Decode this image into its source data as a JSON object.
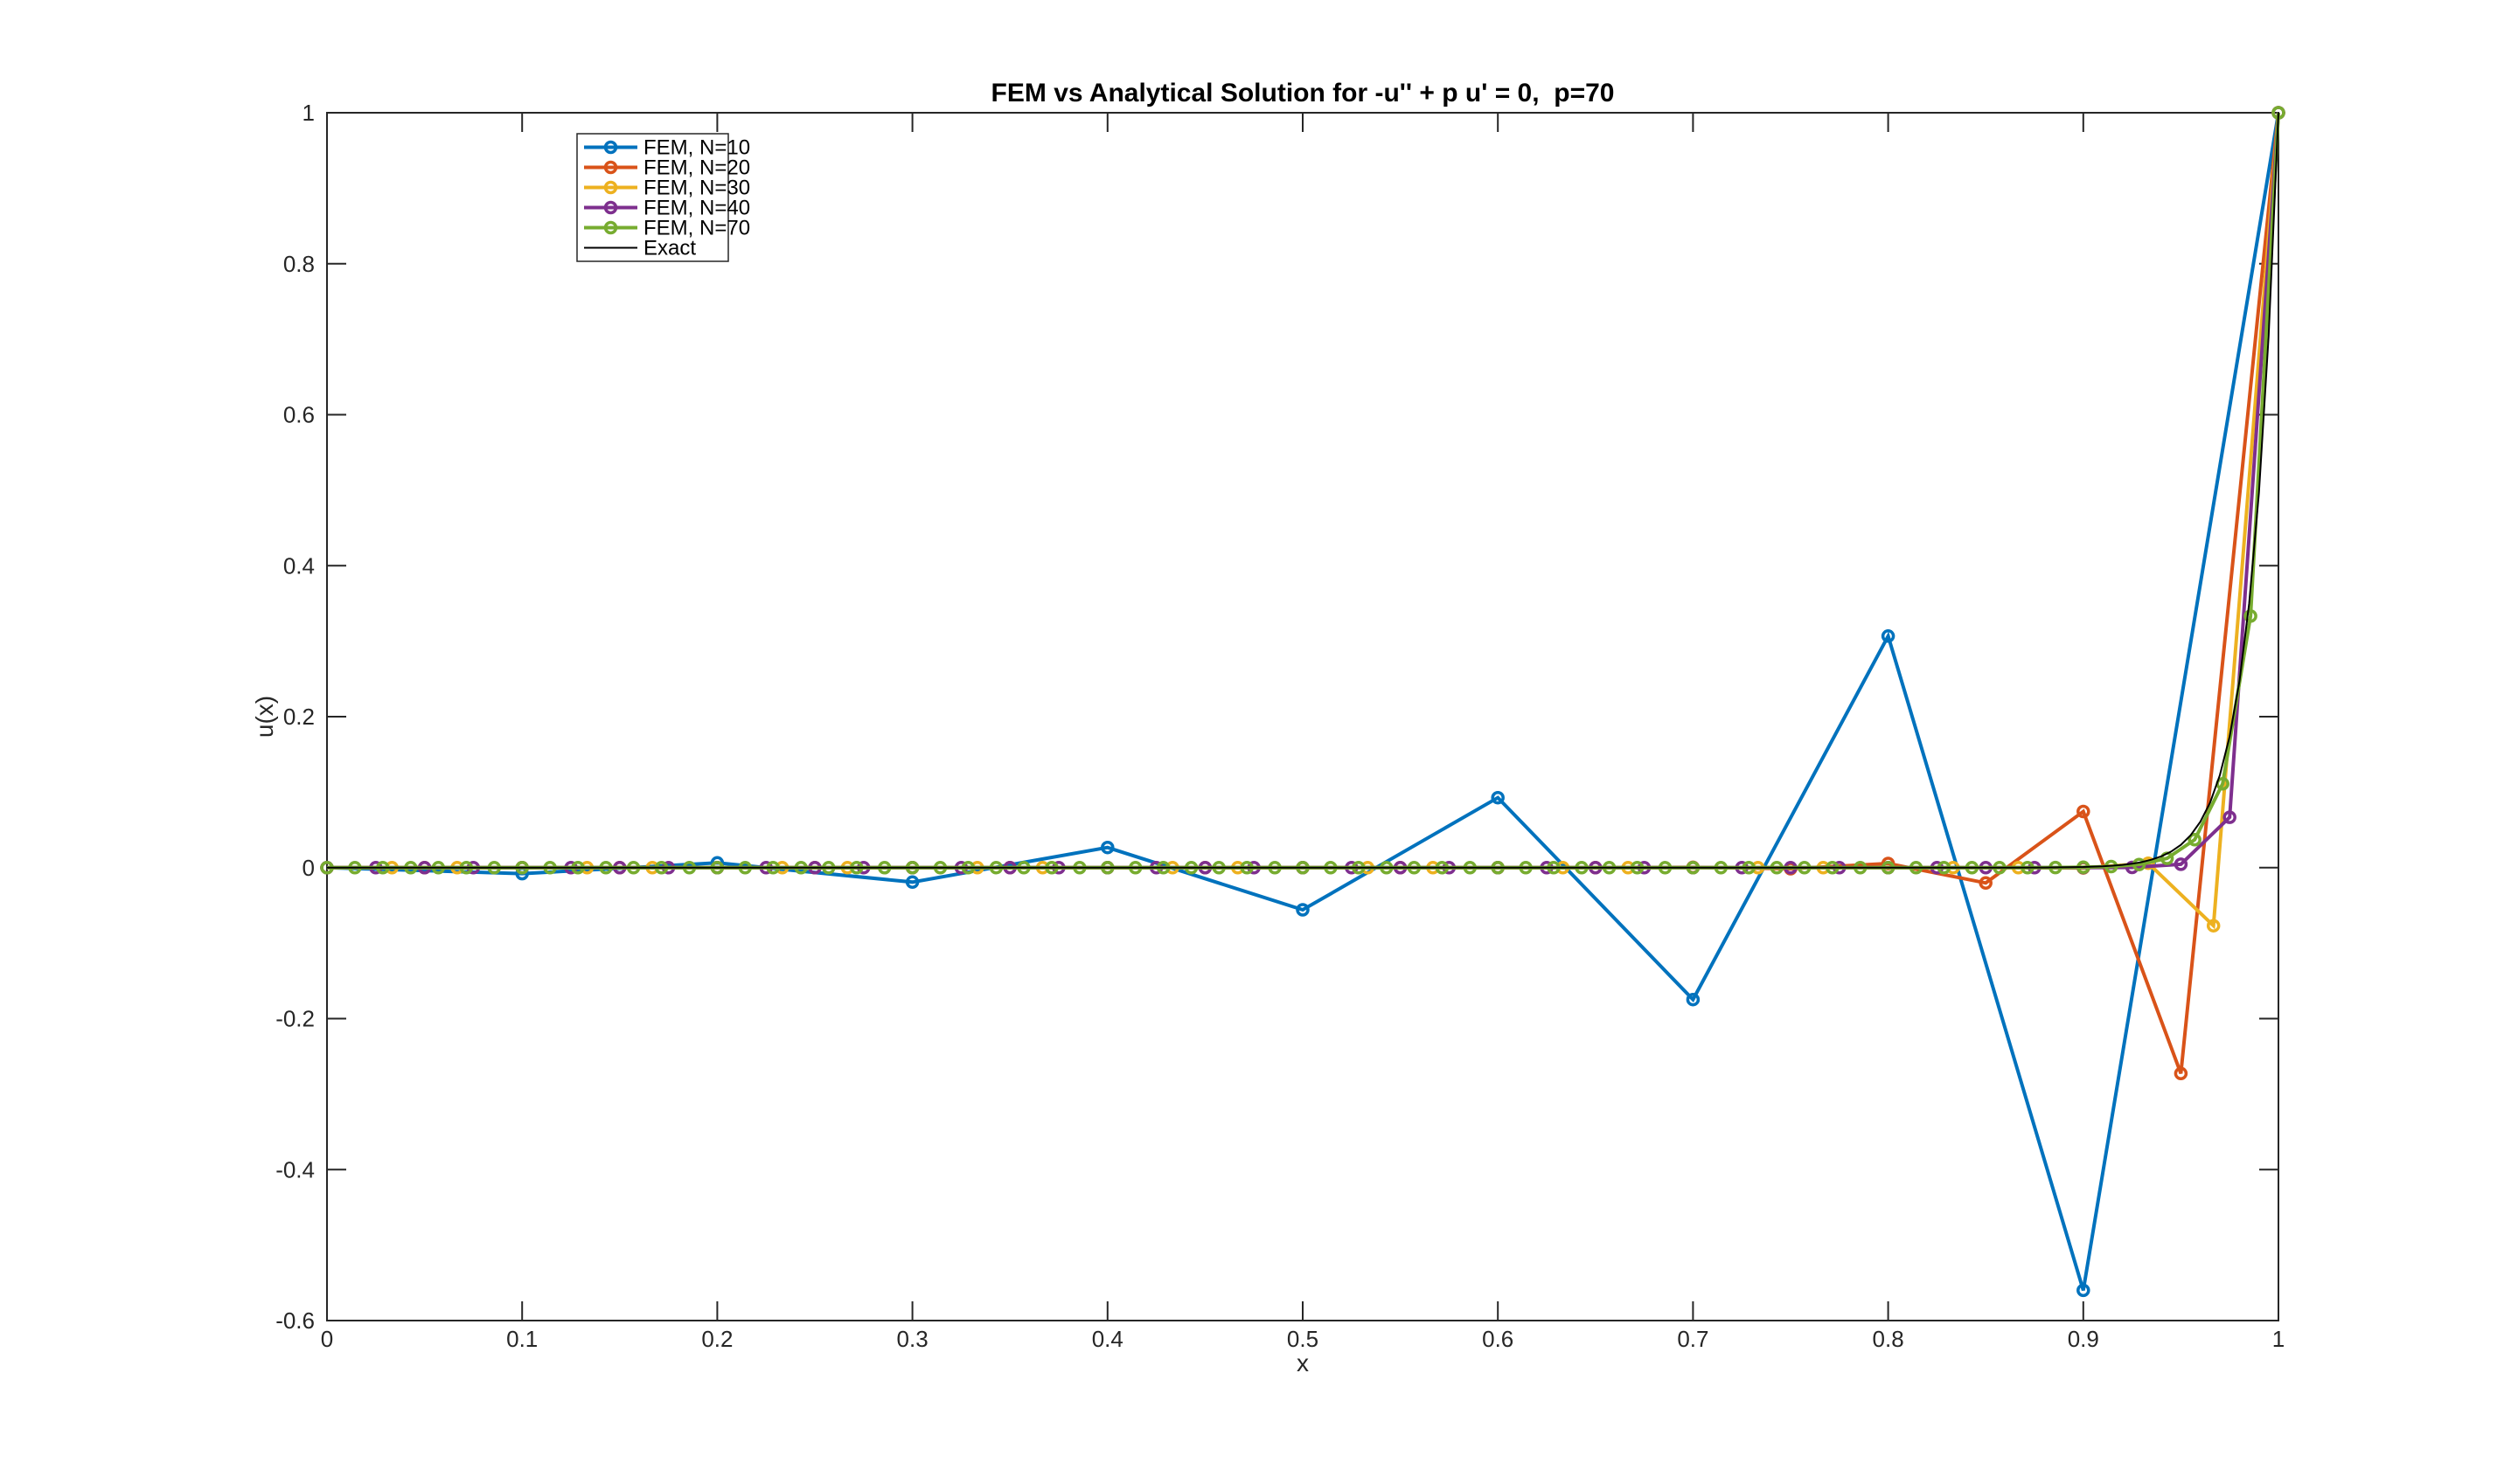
{
  "figure": {
    "background": "#ffffff"
  },
  "chart_data": {
    "type": "line",
    "title": "FEM vs Analytical Solution for -u'' + p u' = 0,  p=70",
    "xlabel": "x",
    "ylabel": "u(x)",
    "xlim": [
      0,
      1
    ],
    "ylim": [
      -0.6,
      1
    ],
    "xticks": [
      0,
      0.1,
      0.2,
      0.3,
      0.4,
      0.5,
      0.6,
      0.7,
      0.8,
      0.9,
      1
    ],
    "xtick_labels": [
      "0",
      "0.1",
      "0.2",
      "0.3",
      "0.4",
      "0.5",
      "0.6",
      "0.7",
      "0.8",
      "0.9",
      "1"
    ],
    "yticks": [
      -0.6,
      -0.4,
      -0.2,
      0,
      0.2,
      0.4,
      0.6,
      0.8,
      1
    ],
    "ytick_labels": [
      "-0.6",
      "-0.4",
      "-0.2",
      "0",
      "0.2",
      "0.4",
      "0.6",
      "0.8",
      "1"
    ],
    "grid": false,
    "box": true,
    "tick_direction": "in",
    "axis_color": "#262626",
    "legend_position": "top-left-inside",
    "series": [
      {
        "name": "FEM, N=10",
        "color": "#0072BD",
        "line_width": 4,
        "marker": "circle",
        "x": [
          0,
          0.1,
          0.2,
          0.3,
          0.4,
          0.5,
          0.6,
          0.7,
          0.8,
          0.9,
          1
        ],
        "y": [
          0,
          -0.0079,
          0.0063,
          -0.0192,
          0.0267,
          -0.0559,
          0.0927,
          -0.1748,
          0.3067,
          -0.5599,
          1
        ]
      },
      {
        "name": "FEM, N=20",
        "color": "#D95319",
        "line_width": 4,
        "marker": "circle",
        "x": [
          0,
          0.05,
          0.1,
          0.15,
          0.2,
          0.25,
          0.3,
          0.35,
          0.4,
          0.45,
          0.5,
          0.55,
          0.6,
          0.65,
          0.7,
          0.75,
          0.8,
          0.85,
          0.9,
          0.95,
          1
        ],
        "y": [
          0,
          0,
          0,
          0,
          0,
          0,
          0,
          0,
          0,
          0,
          0,
          0,
          0,
          -0.0001,
          0.0004,
          -0.0015,
          0.0055,
          -0.0203,
          0.0744,
          -0.2727,
          1
        ]
      },
      {
        "name": "FEM, N=30",
        "color": "#EDB120",
        "line_width": 4,
        "marker": "circle",
        "x": [
          0,
          0.0333,
          0.0667,
          0.1,
          0.1333,
          0.1667,
          0.2,
          0.2333,
          0.2667,
          0.3,
          0.3333,
          0.3667,
          0.4,
          0.4333,
          0.4667,
          0.5,
          0.5333,
          0.5667,
          0.6,
          0.6333,
          0.6667,
          0.7,
          0.7333,
          0.7667,
          0.8,
          0.8333,
          0.8667,
          0.9,
          0.9333,
          0.9667,
          1
        ],
        "y": [
          0,
          0,
          0,
          0,
          0,
          0,
          0,
          0,
          0,
          0,
          0,
          0,
          0,
          0,
          0,
          0,
          0,
          0,
          0,
          0,
          0,
          0,
          0,
          0,
          0,
          0,
          0,
          -0.0005,
          0.0059,
          -0.0769,
          1
        ]
      },
      {
        "name": "FEM, N=40",
        "color": "#7E2F8E",
        "line_width": 4,
        "marker": "circle",
        "x": [
          0,
          0.025,
          0.05,
          0.075,
          0.1,
          0.125,
          0.15,
          0.175,
          0.2,
          0.225,
          0.25,
          0.275,
          0.3,
          0.325,
          0.35,
          0.375,
          0.4,
          0.425,
          0.45,
          0.475,
          0.5,
          0.525,
          0.55,
          0.575,
          0.6,
          0.625,
          0.65,
          0.675,
          0.7,
          0.725,
          0.75,
          0.775,
          0.8,
          0.825,
          0.85,
          0.875,
          0.9,
          0.925,
          0.95,
          0.975,
          1
        ],
        "y": [
          0,
          0,
          0,
          0,
          0,
          0,
          0,
          0,
          0,
          0,
          0,
          0,
          0,
          0,
          0,
          0,
          0,
          0,
          0,
          0,
          0,
          0,
          0,
          0,
          0,
          0,
          0,
          0,
          0,
          0,
          0,
          0,
          0,
          0,
          0,
          0,
          0,
          0.0003,
          0.0044,
          0.0667,
          1
        ]
      },
      {
        "name": "FEM, N=70",
        "color": "#77AC30",
        "line_width": 4,
        "marker": "circle",
        "x": [
          0,
          0.0143,
          0.0286,
          0.0429,
          0.0571,
          0.0714,
          0.0857,
          0.1,
          0.1143,
          0.1286,
          0.1429,
          0.1571,
          0.1714,
          0.1857,
          0.2,
          0.2143,
          0.2286,
          0.2429,
          0.2571,
          0.2714,
          0.2857,
          0.3,
          0.3143,
          0.3286,
          0.3429,
          0.3571,
          0.3714,
          0.3857,
          0.4,
          0.4143,
          0.4286,
          0.4429,
          0.4571,
          0.4714,
          0.4857,
          0.5,
          0.5143,
          0.5286,
          0.5429,
          0.5571,
          0.5714,
          0.5857,
          0.6,
          0.6143,
          0.6286,
          0.6429,
          0.6571,
          0.6714,
          0.6857,
          0.7,
          0.7143,
          0.7286,
          0.7429,
          0.7571,
          0.7714,
          0.7857,
          0.8,
          0.8143,
          0.8286,
          0.8429,
          0.8571,
          0.8714,
          0.8857,
          0.9,
          0.9143,
          0.9286,
          0.9429,
          0.9571,
          0.9714,
          0.9857,
          1
        ],
        "y": [
          0,
          0,
          0,
          0,
          0,
          0,
          0,
          0,
          0,
          0,
          0,
          0,
          0,
          0,
          0,
          0,
          0,
          0,
          0,
          0,
          0,
          0,
          0,
          0,
          0,
          0,
          0,
          0,
          0,
          0,
          0,
          0,
          0,
          0,
          0,
          0,
          0,
          0,
          0,
          0,
          0,
          0,
          0,
          0,
          0,
          0,
          0,
          0,
          0,
          0,
          0,
          0,
          0,
          0,
          0,
          0,
          0,
          0,
          0,
          0,
          0,
          0,
          0.0002,
          0.0005,
          0.0014,
          0.0041,
          0.0123,
          0.037,
          0.1111,
          0.3333,
          1
        ]
      },
      {
        "name": "Exact",
        "color": "#000000",
        "line_width": 2,
        "marker": "none",
        "x": [
          0,
          0.05,
          0.1,
          0.15,
          0.2,
          0.25,
          0.3,
          0.35,
          0.4,
          0.45,
          0.5,
          0.55,
          0.6,
          0.65,
          0.7,
          0.75,
          0.8,
          0.82,
          0.84,
          0.86,
          0.88,
          0.9,
          0.905,
          0.91,
          0.915,
          0.92,
          0.925,
          0.93,
          0.935,
          0.94,
          0.945,
          0.95,
          0.955,
          0.96,
          0.965,
          0.97,
          0.975,
          0.98,
          0.985,
          0.99,
          0.995,
          1
        ],
        "y": [
          0,
          0,
          0,
          0,
          0,
          0,
          0,
          0,
          0,
          0,
          0,
          0,
          0,
          0,
          0,
          0,
          0,
          0,
          0,
          0.0001,
          0.0002,
          0.0009,
          0.0013,
          0.0018,
          0.0026,
          0.0037,
          0.0052,
          0.0074,
          0.0106,
          0.015,
          0.0213,
          0.0302,
          0.0429,
          0.0608,
          0.0863,
          0.1225,
          0.1738,
          0.2466,
          0.3499,
          0.4966,
          0.7047,
          1
        ]
      }
    ]
  }
}
